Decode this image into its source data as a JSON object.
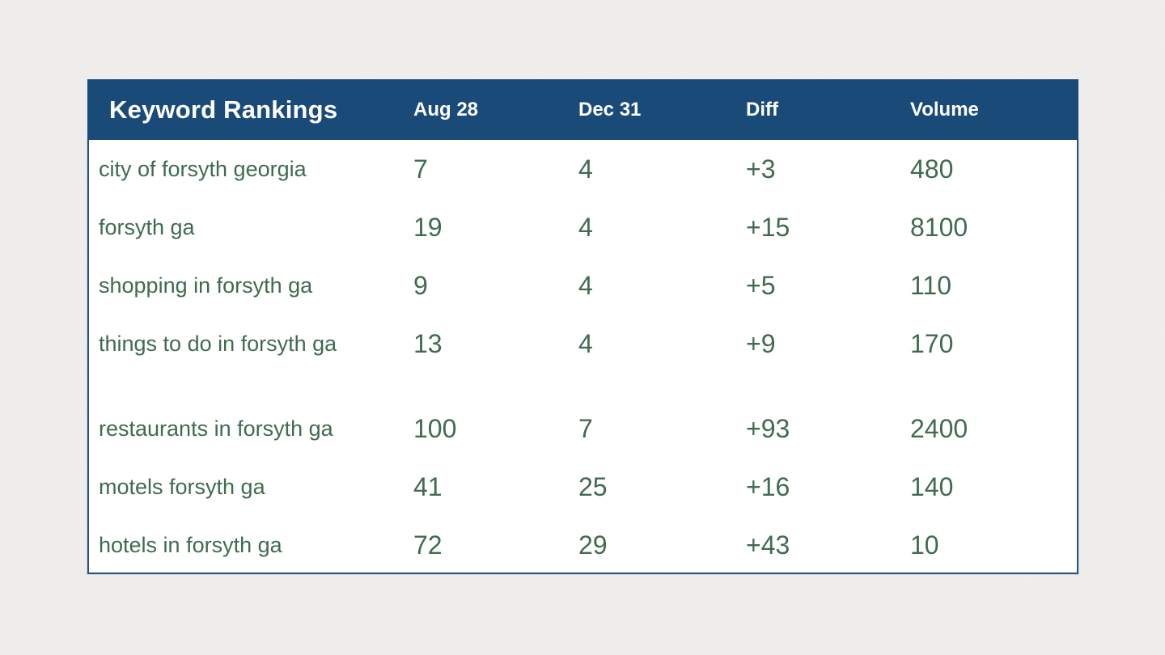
{
  "table": {
    "title": "Keyword Rankings",
    "columns": [
      "Aug 28",
      "Dec 31",
      "Diff",
      "Volume"
    ]
  },
  "colors": {
    "header_bg": "#1a4a78",
    "header_text": "#ffffff",
    "body_text_green": "#3f6b50",
    "table_border": "#2b527c",
    "table_bg": "#ffffff",
    "page_bg": "#f1f0ee"
  },
  "chart_data": {
    "type": "table",
    "title": "Keyword Rankings",
    "columns": [
      "Keyword Rankings",
      "Aug 28",
      "Dec 31",
      "Diff",
      "Volume"
    ],
    "rows": [
      [
        "city of forsyth georgia",
        "7",
        "4",
        "+3",
        "480"
      ],
      [
        "forsyth ga",
        "19",
        "4",
        "+15",
        "8100"
      ],
      [
        "shopping in forsyth ga",
        "9",
        "4",
        "+5",
        "110"
      ],
      [
        "things to do in forsyth ga",
        "13",
        "4",
        "+9",
        "170"
      ],
      [
        "restaurants in forsyth ga",
        "100",
        "7",
        "+93",
        "2400"
      ],
      [
        "motels forsyth ga",
        "41",
        "25",
        "+16",
        "140"
      ],
      [
        "hotels in forsyth ga",
        "72",
        "29",
        "+43",
        "10"
      ]
    ],
    "row_groups": [
      4,
      3
    ],
    "layout": {
      "legend": "none",
      "grid": "off",
      "note": "header row navy with white bold text; body values dark green on white; blank gap separates the two row groups"
    }
  }
}
